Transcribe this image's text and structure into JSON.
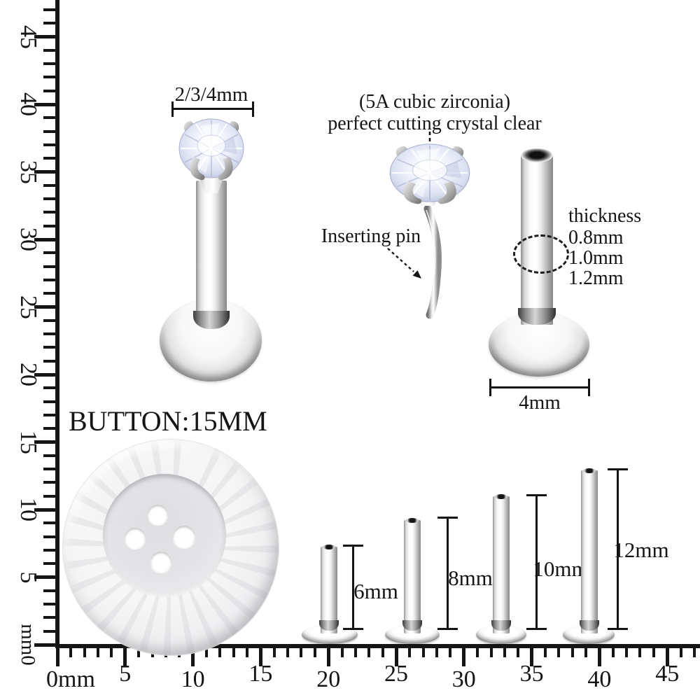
{
  "colors": {
    "background": "#ffffff",
    "ink": "#151515",
    "metal_highlight": "#ffffff",
    "metal_shadow": "#878787",
    "gem_tint": "#ccd5ec",
    "button_face": "#efeff1"
  },
  "rulers": {
    "unit": "mm",
    "left": {
      "labels": [
        {
          "mm": 45,
          "text": "45"
        },
        {
          "mm": 40,
          "text": "40"
        },
        {
          "mm": 35,
          "text": "35"
        },
        {
          "mm": 30,
          "text": "30"
        },
        {
          "mm": 25,
          "text": "25"
        },
        {
          "mm": 20,
          "text": "20"
        },
        {
          "mm": 15,
          "text": "15"
        },
        {
          "mm": 10,
          "text": "10"
        },
        {
          "mm": 5,
          "text": "5"
        },
        {
          "mm": 0,
          "text": "mm0"
        }
      ]
    },
    "bottom": {
      "labels": [
        {
          "mm": 0,
          "text": "0mm"
        },
        {
          "mm": 5,
          "text": "5"
        },
        {
          "mm": 10,
          "text": "10"
        },
        {
          "mm": 15,
          "text": "15"
        },
        {
          "mm": 20,
          "text": "20"
        },
        {
          "mm": 25,
          "text": "25"
        },
        {
          "mm": 30,
          "text": "30"
        },
        {
          "mm": 35,
          "text": "35"
        },
        {
          "mm": 40,
          "text": "40"
        },
        {
          "mm": 45,
          "text": "45"
        }
      ]
    }
  },
  "gem_stud": {
    "width_label": "2/3/4mm"
  },
  "zirconia_note": {
    "line1": "(5A cubic zirconia)",
    "line2": "perfect cutting crystal clear"
  },
  "pin_note": {
    "label": "Inserting pin"
  },
  "thickness_note": {
    "title": "thickness",
    "options": [
      "0.8mm",
      "1.0mm",
      "1.2mm"
    ]
  },
  "base_note": {
    "width_label": "4mm"
  },
  "button_note": {
    "label": "BUTTON:15MM"
  },
  "length_options": [
    {
      "label": "6mm"
    },
    {
      "label": "8mm"
    },
    {
      "label": "10mm"
    },
    {
      "label": "12mm"
    }
  ]
}
